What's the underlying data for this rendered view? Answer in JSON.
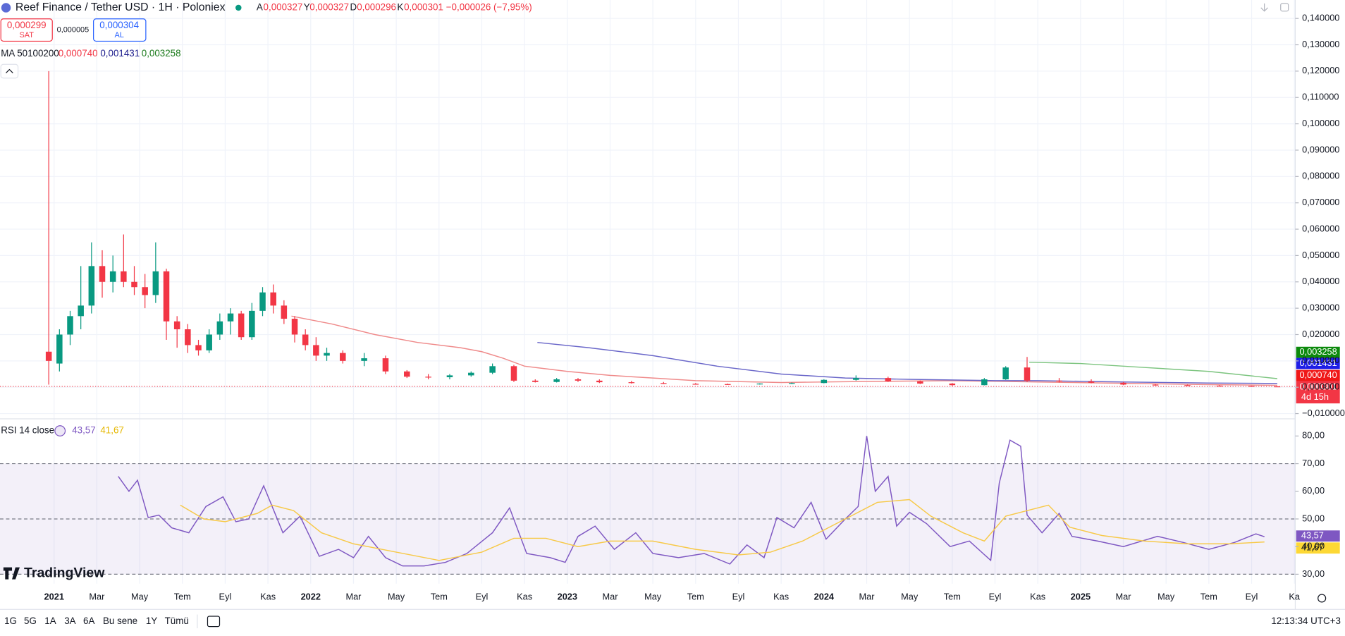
{
  "header": {
    "title": "Reef Finance / Tether USD · 1H · Poloniex",
    "ohlc": [
      {
        "label": "A",
        "value": "0,000327"
      },
      {
        "label": "Y",
        "value": "0,000327"
      },
      {
        "label": "D",
        "value": "0,000296"
      },
      {
        "label": "K",
        "value": "0,000301"
      }
    ],
    "change": "−0,000026 (−7,95%)"
  },
  "trade": {
    "sell_price": "0,000299",
    "sell": "SAT",
    "spread": "0,000005",
    "buy_price": "0,000304",
    "buy": "AL"
  },
  "ma_legend": {
    "label": "MA 50100200",
    "values": [
      "0,000740",
      "0,001431",
      "0,003258"
    ]
  },
  "rsi_legend": {
    "label": "RSI 14 close",
    "values": [
      "43,57",
      "41,67"
    ]
  },
  "countdown": "4d 15h",
  "logo": "TradingView",
  "toolbar": {
    "ranges": [
      "1G",
      "5G",
      "1A",
      "3A",
      "6A",
      "Bu sene",
      "1Y",
      "Tümü"
    ],
    "clock": "12:13:34 UTC+3"
  },
  "chart_data": [
    {
      "type": "candlestick",
      "grid": true,
      "xlim": [
        -2.53,
        58.04
      ],
      "ylim": [
        -0.012,
        0.147
      ],
      "yticks": [
        {
          "value": 0.14,
          "label": "0,140000"
        },
        {
          "value": 0.13,
          "label": "0,130000"
        },
        {
          "value": 0.12,
          "label": "0,120000"
        },
        {
          "value": 0.11,
          "label": "0,110000"
        },
        {
          "value": 0.1,
          "label": "0,100000"
        },
        {
          "value": 0.09,
          "label": "0,090000"
        },
        {
          "value": 0.08,
          "label": "0,080000"
        },
        {
          "value": 0.07,
          "label": "0,070000"
        },
        {
          "value": 0.06,
          "label": "0,060000"
        },
        {
          "value": 0.05,
          "label": "0,050000"
        },
        {
          "value": 0.04,
          "label": "0,040000"
        },
        {
          "value": 0.03,
          "label": "0,030000"
        },
        {
          "value": 0.02,
          "label": "0,020000"
        },
        {
          "value": 0.01,
          "label": "0,010000"
        },
        {
          "value": 0,
          "label": "0,000000"
        },
        {
          "value": -0.01,
          "label": "−0,010000"
        }
      ],
      "candles": {
        "up_color": "#089981",
        "down_color": "#f23645",
        "x": [
          -0.25,
          0.25,
          0.75,
          1.25,
          1.75,
          2.25,
          2.75,
          3.25,
          3.75,
          4.25,
          4.75,
          5.25,
          5.75,
          6.25,
          6.75,
          7.25,
          7.75,
          8.25,
          8.75,
          9.25,
          9.75,
          10.25,
          10.75,
          11.25,
          11.75,
          12.25,
          12.75,
          13.5,
          14.5,
          15.5,
          16.5,
          17.5,
          18.5,
          19.5,
          20.5,
          21.5,
          22.5,
          23.5,
          24.5,
          25.5,
          27,
          28.5,
          30,
          31.5,
          33,
          34.5,
          36,
          37.5,
          39,
          40.5,
          42,
          43.5,
          44.5,
          45.5,
          47,
          48.5,
          50,
          51.5,
          53,
          54.5,
          56,
          57.2
        ],
        "open": [
          0.0135,
          0.009,
          0.02,
          0.027,
          0.031,
          0.046,
          0.04,
          0.044,
          0.04,
          0.038,
          0.035,
          0.044,
          0.025,
          0.022,
          0.016,
          0.014,
          0.02,
          0.025,
          0.028,
          0.019,
          0.029,
          0.036,
          0.031,
          0.026,
          0.02,
          0.016,
          0.012,
          0.013,
          0.01,
          0.011,
          0.006,
          0.004,
          0.0038,
          0.0045,
          0.0055,
          0.008,
          0.0025,
          0.002,
          0.003,
          0.0025,
          0.0019,
          0.0016,
          0.0013,
          0.0012,
          0.0011,
          0.0014,
          0.0016,
          0.0028,
          0.0035,
          0.0022,
          0.0014,
          0.0008,
          0.003,
          0.0075,
          0.0025,
          0.0022,
          0.0017,
          0.001,
          0.0008,
          0.0006,
          0.0005,
          0.000327
        ],
        "high": [
          0.12,
          0.022,
          0.029,
          0.046,
          0.055,
          0.052,
          0.05,
          0.058,
          0.046,
          0.043,
          0.055,
          0.045,
          0.027,
          0.024,
          0.018,
          0.022,
          0.028,
          0.03,
          0.029,
          0.032,
          0.038,
          0.039,
          0.033,
          0.027,
          0.022,
          0.019,
          0.015,
          0.014,
          0.013,
          0.012,
          0.0065,
          0.005,
          0.005,
          0.006,
          0.009,
          0.0085,
          0.003,
          0.0035,
          0.0035,
          0.003,
          0.0024,
          0.002,
          0.0016,
          0.0014,
          0.0015,
          0.0018,
          0.003,
          0.0045,
          0.004,
          0.0026,
          0.0016,
          0.0035,
          0.008,
          0.0115,
          0.0035,
          0.003,
          0.002,
          0.0012,
          0.001,
          0.0008,
          0.0006,
          0.000327
        ],
        "low": [
          0.001,
          0.006,
          0.016,
          0.022,
          0.028,
          0.034,
          0.036,
          0.038,
          0.035,
          0.03,
          0.032,
          0.018,
          0.015,
          0.013,
          0.012,
          0.013,
          0.018,
          0.02,
          0.018,
          0.018,
          0.027,
          0.028,
          0.024,
          0.017,
          0.014,
          0.01,
          0.01,
          0.009,
          0.008,
          0.005,
          0.0035,
          0.003,
          0.003,
          0.004,
          0.005,
          0.002,
          0.0018,
          0.0018,
          0.002,
          0.0016,
          0.0014,
          0.0012,
          0.001,
          0.0009,
          0.001,
          0.0012,
          0.0015,
          0.0025,
          0.002,
          0.0012,
          0.0005,
          0.0007,
          0.0028,
          0.002,
          0.0018,
          0.0015,
          0.0008,
          0.0006,
          0.0005,
          0.0004,
          0.0003,
          0.000296
        ],
        "close": [
          0.01,
          0.02,
          0.027,
          0.031,
          0.046,
          0.04,
          0.044,
          0.04,
          0.038,
          0.035,
          0.044,
          0.025,
          0.022,
          0.016,
          0.014,
          0.02,
          0.025,
          0.028,
          0.019,
          0.029,
          0.036,
          0.031,
          0.026,
          0.02,
          0.016,
          0.012,
          0.013,
          0.01,
          0.011,
          0.006,
          0.004,
          0.0038,
          0.0045,
          0.0055,
          0.008,
          0.0025,
          0.002,
          0.003,
          0.0025,
          0.0019,
          0.0016,
          0.0013,
          0.0012,
          0.0011,
          0.0014,
          0.0016,
          0.0028,
          0.0035,
          0.0022,
          0.0014,
          0.0008,
          0.003,
          0.0075,
          0.0025,
          0.0022,
          0.0017,
          0.001,
          0.0008,
          0.0006,
          0.0005,
          0.0004,
          0.000301
        ]
      },
      "lines": [
        {
          "color": "#ef8a8a",
          "x": [
            11.1,
            13,
            15,
            17,
            19,
            20,
            21,
            22,
            24,
            26,
            28,
            30,
            34,
            38,
            42,
            46,
            50,
            54,
            57.2
          ],
          "values": [
            0.027,
            0.024,
            0.02,
            0.017,
            0.015,
            0.0135,
            0.011,
            0.008,
            0.006,
            0.0045,
            0.0035,
            0.0025,
            0.0018,
            0.0022,
            0.0025,
            0.002,
            0.0015,
            0.001,
            0.00074
          ]
        },
        {
          "color": "#6a67c9",
          "x": [
            22.6,
            25,
            28,
            31,
            34,
            37,
            40,
            44,
            46,
            50,
            54,
            57.2
          ],
          "values": [
            0.017,
            0.015,
            0.012,
            0.008,
            0.005,
            0.0035,
            0.003,
            0.0025,
            0.0025,
            0.002,
            0.0016,
            0.001431
          ]
        },
        {
          "color": "#7cc47f",
          "x": [
            45.6,
            48,
            51,
            54,
            57.2
          ],
          "values": [
            0.0095,
            0.009,
            0.0075,
            0.006,
            0.003258
          ]
        }
      ]
    },
    {
      "type": "line",
      "grid": false,
      "xlim": [
        -2.53,
        58.04
      ],
      "ylim": [
        26.6,
        86.2
      ],
      "xticks": [
        {
          "value": 0,
          "label": "2021"
        },
        {
          "value": 2,
          "label": "Mar"
        },
        {
          "value": 4,
          "label": "May"
        },
        {
          "value": 6,
          "label": "Tem"
        },
        {
          "value": 8,
          "label": "Eyl"
        },
        {
          "value": 10,
          "label": "Kas"
        },
        {
          "value": 12,
          "label": "2022"
        },
        {
          "value": 14,
          "label": "Mar"
        },
        {
          "value": 16,
          "label": "May"
        },
        {
          "value": 18,
          "label": "Tem"
        },
        {
          "value": 20,
          "label": "Eyl"
        },
        {
          "value": 22,
          "label": "Kas"
        },
        {
          "value": 24,
          "label": "2023"
        },
        {
          "value": 26,
          "label": "Mar"
        },
        {
          "value": 28,
          "label": "May"
        },
        {
          "value": 30,
          "label": "Tem"
        },
        {
          "value": 32,
          "label": "Eyl"
        },
        {
          "value": 34,
          "label": "Kas"
        },
        {
          "value": 36,
          "label": "2024"
        },
        {
          "value": 38,
          "label": "Mar"
        },
        {
          "value": 40,
          "label": "May"
        },
        {
          "value": 42,
          "label": "Tem"
        },
        {
          "value": 44,
          "label": "Eyl"
        },
        {
          "value": 46,
          "label": "Kas"
        },
        {
          "value": 48,
          "label": "2025"
        },
        {
          "value": 50,
          "label": "Mar"
        },
        {
          "value": 52,
          "label": "May"
        },
        {
          "value": 54,
          "label": "Tem"
        },
        {
          "value": 56,
          "label": "Eyl"
        },
        {
          "value": 58,
          "label": "Ka"
        }
      ],
      "yticks": [
        {
          "value": 80,
          "label": "80,00"
        },
        {
          "value": 70,
          "label": "70,00"
        },
        {
          "value": 60,
          "label": "60,00"
        },
        {
          "value": 50,
          "label": "50,00"
        },
        {
          "value": 40,
          "label": "40,00"
        },
        {
          "value": 30,
          "label": "30,00"
        }
      ],
      "band": {
        "lower": 30,
        "upper": 70,
        "middle": 50,
        "color": "#7e57c2"
      },
      "lines": [
        {
          "color": "#7e57c2",
          "x": [
            3.0,
            3.5,
            3.9,
            4.4,
            4.9,
            5.5,
            6.3,
            7.1,
            7.9,
            8.5,
            9.1,
            9.8,
            10.7,
            11.5,
            12.4,
            13.3,
            14.0,
            14.7,
            15.5,
            16.3,
            17.3,
            18.3,
            19.3,
            20.5,
            21.3,
            22.1,
            23.2,
            23.9,
            24.5,
            25.3,
            26.2,
            27.2,
            28.0,
            29.2,
            30.4,
            31.6,
            32.4,
            33.2,
            33.8,
            34.6,
            35.4,
            36.1,
            37.0,
            37.6,
            38.0,
            38.4,
            39.0,
            39.4,
            40.0,
            40.8,
            41.9,
            42.8,
            43.8,
            44.2,
            44.7,
            45.2,
            45.5,
            46.2,
            47.0,
            47.6,
            48.8,
            50.0,
            51.6,
            52.8,
            54.0,
            55.2,
            56.2,
            56.6
          ],
          "values": [
            65.4,
            60,
            64,
            50.5,
            51.4,
            46.8,
            45,
            54.5,
            58,
            49,
            50,
            62,
            45,
            51,
            36.5,
            39,
            36,
            43.7,
            36,
            33,
            33,
            34.3,
            37.5,
            45,
            54,
            37.5,
            36,
            34.3,
            43.7,
            47.4,
            39,
            45,
            37.5,
            36,
            37.5,
            33.7,
            40.6,
            36,
            50.5,
            46.8,
            56,
            42.7,
            50,
            54.5,
            80,
            60,
            65.4,
            47.4,
            52.4,
            48.3,
            40,
            42,
            35,
            63,
            78.5,
            76.3,
            51.4,
            45,
            52,
            43.7,
            42,
            40,
            43.7,
            41.5,
            39,
            41.5,
            44.6,
            43.57
          ]
        },
        {
          "color": "#f7c948",
          "x": [
            5.9,
            7,
            8,
            9.5,
            10.2,
            11.2,
            12.5,
            14,
            16,
            18,
            20,
            21.5,
            23,
            24.5,
            26,
            28,
            30,
            32,
            33.5,
            35,
            37,
            38.5,
            40,
            41,
            42.5,
            43.5,
            44.5,
            45.5,
            46.5,
            47.5,
            49,
            51,
            53,
            55,
            56.6
          ],
          "values": [
            55,
            50,
            49,
            52,
            55,
            53,
            45,
            41,
            38,
            35,
            38,
            43,
            43,
            40,
            42,
            42,
            39,
            37,
            38,
            42,
            50,
            56,
            57,
            51,
            45,
            42,
            51,
            53,
            55,
            47,
            44,
            42,
            41,
            41,
            41.67
          ]
        }
      ]
    }
  ]
}
